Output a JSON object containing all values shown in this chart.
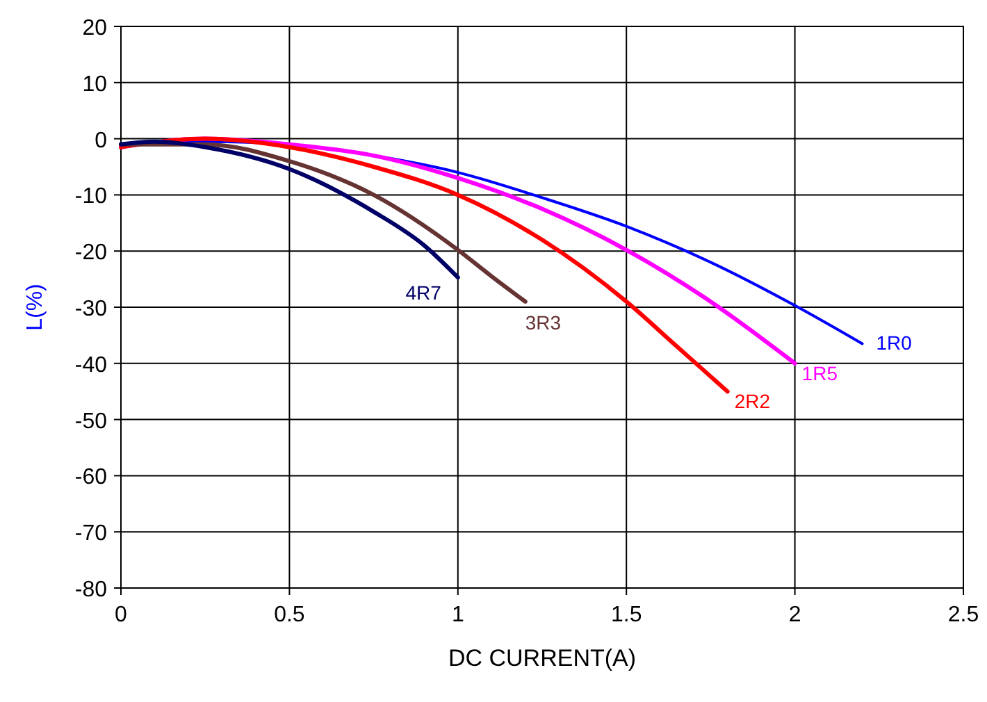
{
  "chart_data": {
    "type": "line",
    "xlabel": "DC CURRENT(A)",
    "ylabel": "L(%)",
    "xlim": [
      0,
      2.5
    ],
    "ylim": [
      -80,
      20
    ],
    "xticks": [
      0,
      0.5,
      1,
      1.5,
      2,
      2.5
    ],
    "yticks": [
      -80,
      -70,
      -60,
      -50,
      -40,
      -30,
      -20,
      -10,
      0,
      10,
      20
    ],
    "grid": true,
    "series": [
      {
        "name": "1R0",
        "color": "#0000ff",
        "x": [
          0,
          0.25,
          0.5,
          0.75,
          1,
          1.25,
          1.5,
          1.75,
          2,
          2.2
        ],
        "values": [
          -1,
          -0.5,
          -1,
          -3,
          -6,
          -10.5,
          -15.6,
          -22,
          -29.7,
          -36.5
        ]
      },
      {
        "name": "1R5",
        "color": "#ff00ff",
        "x": [
          0,
          0.25,
          0.5,
          0.75,
          1,
          1.25,
          1.5,
          1.75,
          2
        ],
        "values": [
          -1.5,
          0,
          -1,
          -3,
          -7,
          -12.5,
          -19.8,
          -29,
          -40
        ]
      },
      {
        "name": "2R2",
        "color": "#ff0000",
        "x": [
          0,
          0.25,
          0.5,
          0.75,
          1,
          1.25,
          1.5,
          1.65,
          1.8
        ],
        "values": [
          -1.5,
          0,
          -1.5,
          -5,
          -10,
          -18,
          -29,
          -37,
          -45
        ]
      },
      {
        "name": "3R3",
        "color": "#663333",
        "x": [
          0,
          0.25,
          0.5,
          0.75,
          1,
          1.1,
          1.2
        ],
        "values": [
          -1,
          -1,
          -4,
          -10,
          -19.8,
          -24.5,
          -29
        ]
      },
      {
        "name": "4R7",
        "color": "#000066",
        "x": [
          0,
          0.1,
          0.25,
          0.5,
          0.75,
          0.9,
          1
        ],
        "values": [
          -1,
          -0.5,
          -1.5,
          -5.4,
          -13,
          -19,
          -24.7
        ]
      }
    ]
  }
}
